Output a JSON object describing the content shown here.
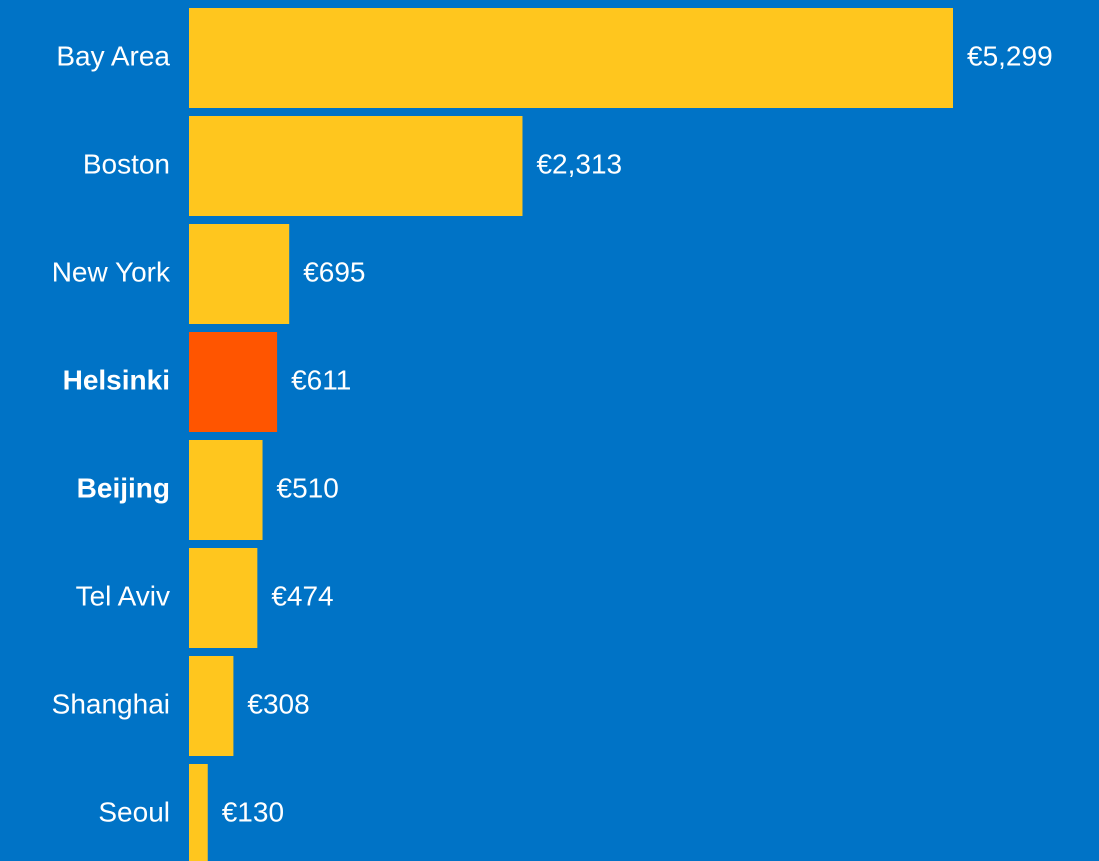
{
  "chart_data": {
    "type": "bar",
    "orientation": "horizontal",
    "categories": [
      "Bay Area",
      "Boston",
      "New York",
      "Helsinki",
      "Beijing",
      "Tel Aviv",
      "Shanghai",
      "Seoul"
    ],
    "values": [
      5299,
      2313,
      695,
      611,
      510,
      474,
      308,
      130
    ],
    "value_labels": [
      "€5,299",
      "€2,313",
      "€695",
      "€611",
      "€510",
      "€474",
      "€308",
      "€130"
    ],
    "colors": [
      "#ffc61e",
      "#ffc61e",
      "#ffc61e",
      "#ff5500",
      "#ffc61e",
      "#ffc61e",
      "#ffc61e",
      "#ffc61e"
    ],
    "bold_categories": [
      false,
      false,
      false,
      true,
      true,
      false,
      false,
      false
    ],
    "background": "#0073c6"
  }
}
